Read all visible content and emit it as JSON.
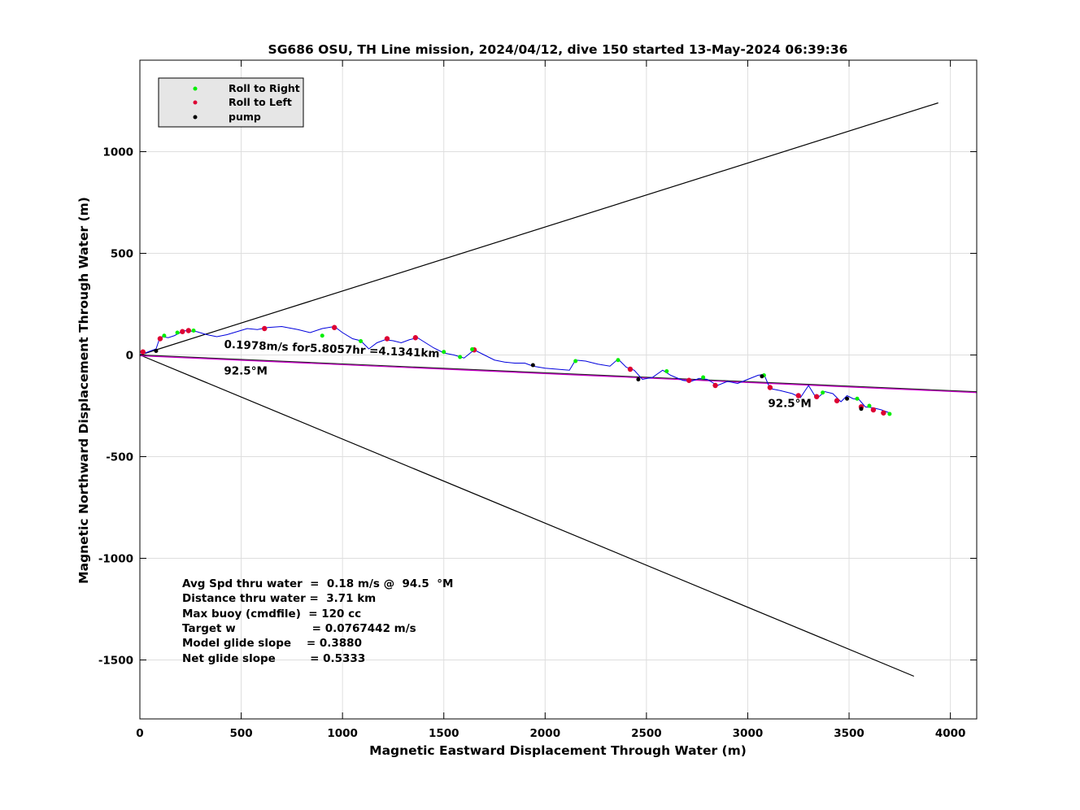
{
  "chart_data": {
    "type": "line",
    "title": "SG686 OSU, TH Line mission, 2024/04/12, dive 150 started 13-May-2024 06:39:36",
    "xlabel": "Magnetic Eastward Displacement Through Water (m)",
    "ylabel": "Magnetic Northward Displacement Through Water (m)",
    "xlim": [
      0,
      4130
    ],
    "ylim": [
      -1790,
      1450
    ],
    "xticks": [
      0,
      500,
      1000,
      1500,
      2000,
      2500,
      3000,
      3500,
      4000
    ],
    "yticks": [
      1000,
      500,
      0,
      -500,
      -1000,
      -1500
    ],
    "xtick_labels": [
      "0",
      "500",
      "1000",
      "1500",
      "2000",
      "2500",
      "3000",
      "3500",
      "4000"
    ],
    "ytick_labels": [
      "1000",
      "500",
      "0",
      "-500",
      "-1000",
      "-1500"
    ],
    "grid": true,
    "legend_position": "top-left",
    "legend": [
      {
        "label": "Roll to Right",
        "color": "#00ee00"
      },
      {
        "label": "Roll to Left",
        "color": "#dd0033"
      },
      {
        "label": "pump",
        "color": "#000000"
      }
    ],
    "colors": {
      "track": "#0000dd",
      "heading_line": "#cc00cc",
      "cone": "#000000"
    },
    "cone_lines": [
      {
        "x": [
          0,
          3940
        ],
        "y": [
          0,
          1240
        ]
      },
      {
        "x": [
          0,
          3820
        ],
        "y": [
          0,
          -1580
        ]
      }
    ],
    "heading_line": {
      "x": [
        0,
        4130
      ],
      "y": [
        0,
        -181
      ]
    },
    "annotations": [
      {
        "text": "0.1978m/s for5.8057hr =4.1341km",
        "x": 415,
        "y": 35,
        "angle": -2.5
      },
      {
        "text": "92.5°M",
        "x": 415,
        "y": -95
      },
      {
        "text": "92.5°M",
        "x": 3100,
        "y": -255
      }
    ],
    "series": [
      {
        "name": "track",
        "x": [
          0,
          15,
          40,
          80,
          95,
          110,
          140,
          170,
          200,
          215,
          240,
          280,
          330,
          380,
          430,
          480,
          530,
          580,
          630,
          700,
          780,
          840,
          900,
          960,
          1000,
          1050,
          1090,
          1130,
          1170,
          1210,
          1250,
          1290,
          1330,
          1370,
          1410,
          1450,
          1500,
          1550,
          1600,
          1650,
          1700,
          1750,
          1800,
          1850,
          1900,
          1940,
          2000,
          2060,
          2120,
          2150,
          2200,
          2260,
          2320,
          2360,
          2400,
          2440,
          2480,
          2530,
          2580,
          2620,
          2680,
          2720,
          2760,
          2800,
          2850,
          2900,
          2950,
          3000,
          3050,
          3080,
          3110,
          3160,
          3220,
          3260,
          3300,
          3340,
          3380,
          3420,
          3460,
          3490,
          3520,
          3550,
          3580,
          3620,
          3660,
          3700
        ],
        "y": [
          0,
          5,
          15,
          30,
          75,
          90,
          85,
          95,
          110,
          120,
          118,
          115,
          100,
          90,
          100,
          115,
          130,
          125,
          135,
          140,
          125,
          110,
          130,
          140,
          110,
          80,
          70,
          30,
          60,
          75,
          70,
          60,
          75,
          85,
          60,
          35,
          10,
          0,
          -15,
          25,
          0,
          -25,
          -35,
          -40,
          -40,
          -55,
          -65,
          -70,
          -75,
          -25,
          -30,
          -45,
          -55,
          -20,
          -60,
          -75,
          -120,
          -110,
          -75,
          -100,
          -125,
          -130,
          -115,
          -120,
          -150,
          -130,
          -140,
          -120,
          -100,
          -95,
          -165,
          -175,
          -190,
          -210,
          -150,
          -215,
          -180,
          -190,
          -230,
          -200,
          -215,
          -220,
          -255,
          -260,
          -270,
          -285
        ]
      }
    ],
    "markers": {
      "right": {
        "x": [
          120,
          185,
          265,
          900,
          1090,
          1500,
          1580,
          1640,
          2150,
          2360,
          2600,
          2780,
          3080,
          3370,
          3540,
          3600,
          3700
        ],
        "y": [
          95,
          110,
          120,
          95,
          68,
          15,
          -10,
          28,
          -30,
          -25,
          -80,
          -110,
          -100,
          -185,
          -215,
          -250,
          -290
        ]
      },
      "left": {
        "x": [
          15,
          100,
          210,
          240,
          615,
          960,
          1220,
          1360,
          1650,
          2420,
          2710,
          2840,
          3110,
          3250,
          3340,
          3440,
          3560,
          3620,
          3670
        ],
        "y": [
          15,
          80,
          115,
          120,
          130,
          135,
          80,
          85,
          25,
          -70,
          -125,
          -150,
          -160,
          -200,
          -205,
          -225,
          -255,
          -270,
          -285
        ]
      },
      "pump": {
        "x": [
          80,
          1940,
          2460,
          3070,
          3490,
          3560
        ],
        "y": [
          20,
          -50,
          -120,
          -105,
          -215,
          -265
        ]
      }
    },
    "stats_lines": [
      "Avg Spd thru water  =  0.18 m/s @  94.5  °M",
      "Distance thru water =  3.71 km",
      "Max buoy (cmdfile)  = 120 cc",
      "Target w                    = 0.0767442 m/s",
      "Model glide slope    = 0.3880",
      "Net glide slope         = 0.5333"
    ]
  }
}
